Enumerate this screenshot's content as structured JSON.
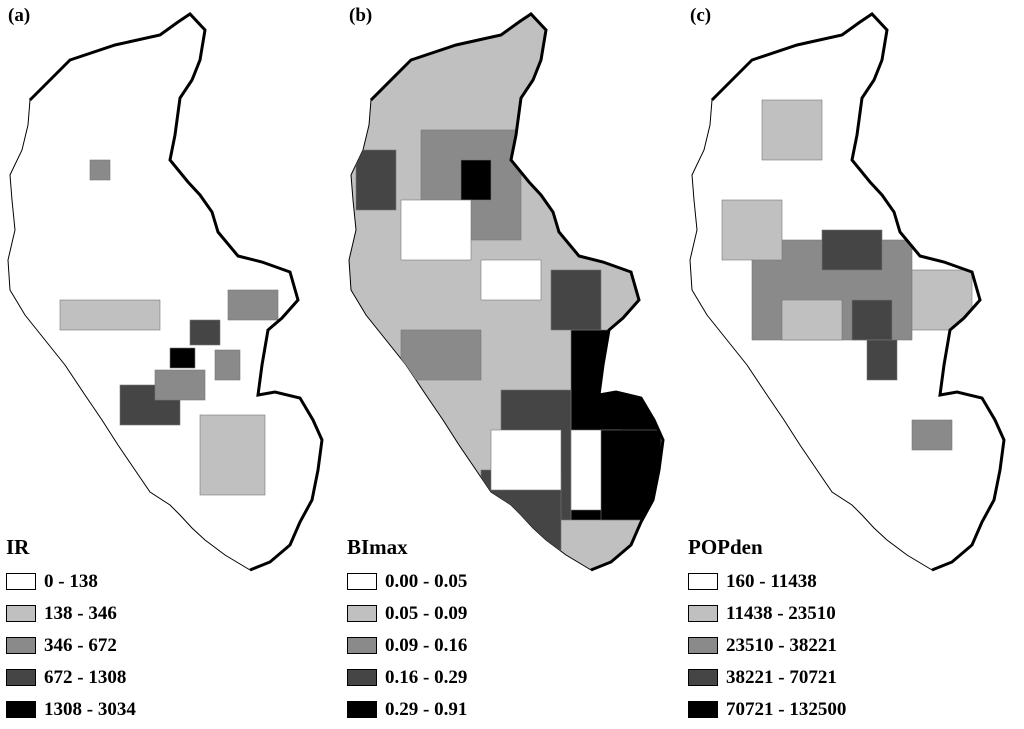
{
  "panels": [
    {
      "label": "(a)",
      "legend_title": "IR",
      "classes": [
        {
          "label": "0 - 138",
          "color": "#ffffff"
        },
        {
          "label": "138 - 346",
          "color": "#c0c0c0"
        },
        {
          "label": "346 - 672",
          "color": "#8a8a8a"
        },
        {
          "label": "672 - 1308",
          "color": "#454545"
        },
        {
          "label": "1308 - 3034",
          "color": "#000000"
        }
      ]
    },
    {
      "label": "(b)",
      "legend_title": "BImax",
      "classes": [
        {
          "label": "0.00 - 0.05",
          "color": "#ffffff"
        },
        {
          "label": "0.05 - 0.09",
          "color": "#c0c0c0"
        },
        {
          "label": "0.09 - 0.16",
          "color": "#8a8a8a"
        },
        {
          "label": "0.16 - 0.29",
          "color": "#454545"
        },
        {
          "label": "0.29 - 0.91",
          "color": "#000000"
        }
      ]
    },
    {
      "label": "(c)",
      "legend_title": "POPden",
      "classes": [
        {
          "label": "160 - 11438",
          "color": "#ffffff"
        },
        {
          "label": "11438 - 23510",
          "color": "#c0c0c0"
        },
        {
          "label": "23510 - 38221",
          "color": "#8a8a8a"
        },
        {
          "label": "38221 - 70721",
          "color": "#454545"
        },
        {
          "label": "70721 - 132500",
          "color": "#000000"
        }
      ]
    }
  ]
}
